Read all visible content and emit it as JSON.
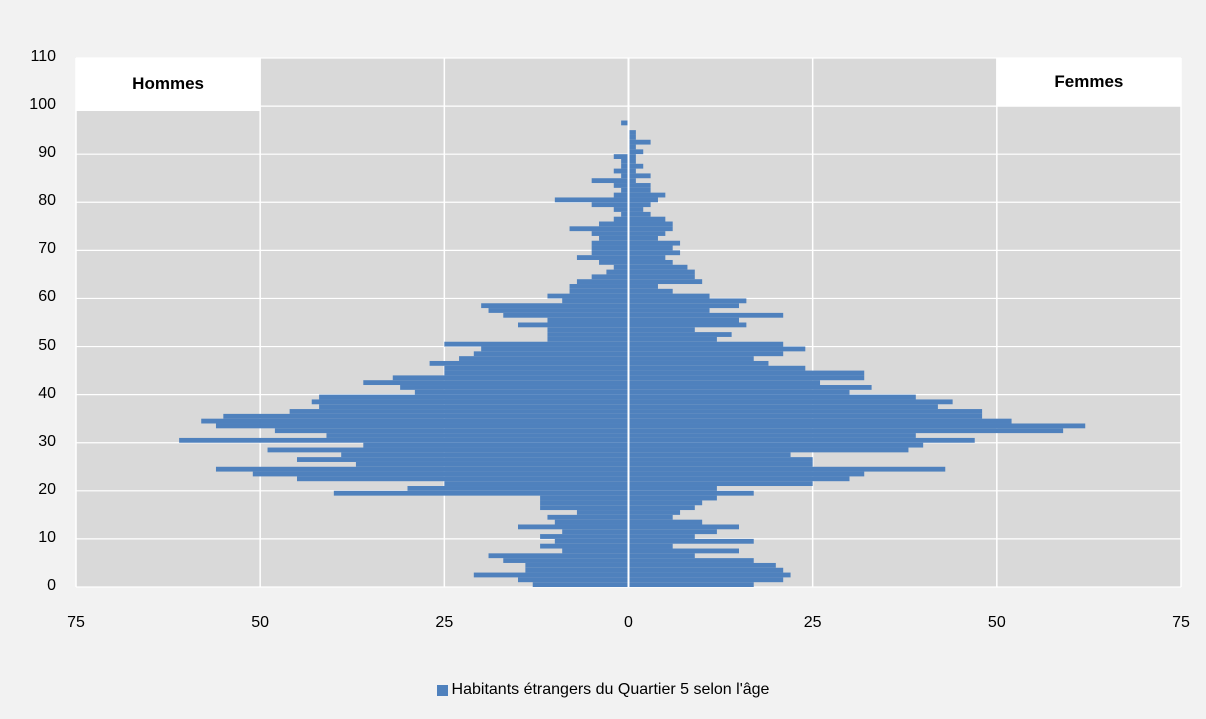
{
  "colors": {
    "bar": "#4f81bd",
    "plot_bg": "#d9d9d9",
    "frame_bg": "#f2f2f2",
    "grid": "#ffffff"
  },
  "labels": {
    "left_box": "Hommes",
    "right_box": "Femmes",
    "legend": "Habitants étrangers du Quartier 5 selon l'âge"
  },
  "chart_data": {
    "type": "bar",
    "orientation": "horizontal-population-pyramid",
    "title": "",
    "xlabel": "",
    "ylabel": "",
    "xlim": [
      -75,
      75
    ],
    "ylim": [
      0,
      110
    ],
    "x_ticks": [
      -75,
      -50,
      -25,
      0,
      25,
      50,
      75
    ],
    "x_tick_labels": [
      "75",
      "50",
      "25",
      "0",
      "25",
      "50",
      "75"
    ],
    "y_ticks": [
      0,
      10,
      20,
      30,
      40,
      50,
      60,
      70,
      80,
      90,
      100,
      110
    ],
    "grid": true,
    "legend_position": "bottom",
    "ages": [
      0,
      1,
      2,
      3,
      4,
      5,
      6,
      7,
      8,
      9,
      10,
      11,
      12,
      13,
      14,
      15,
      16,
      17,
      18,
      19,
      20,
      21,
      22,
      23,
      24,
      25,
      26,
      27,
      28,
      29,
      30,
      31,
      32,
      33,
      34,
      35,
      36,
      37,
      38,
      39,
      40,
      41,
      42,
      43,
      44,
      45,
      46,
      47,
      48,
      49,
      50,
      51,
      52,
      53,
      54,
      55,
      56,
      57,
      58,
      59,
      60,
      61,
      62,
      63,
      64,
      65,
      66,
      67,
      68,
      69,
      70,
      71,
      72,
      73,
      74,
      75,
      76,
      77,
      78,
      79,
      80,
      81,
      82,
      83,
      84,
      85,
      86,
      87,
      88,
      89,
      90,
      91,
      92,
      93,
      94,
      95,
      96,
      97
    ],
    "series": [
      {
        "name": "Hommes",
        "values": [
          13,
          15,
          21,
          14,
          14,
          17,
          19,
          9,
          12,
          10,
          12,
          9,
          15,
          10,
          11,
          7,
          12,
          12,
          12,
          40,
          30,
          25,
          45,
          51,
          56,
          37,
          45,
          39,
          49,
          36,
          61,
          41,
          48,
          56,
          58,
          55,
          46,
          42,
          43,
          42,
          29,
          31,
          36,
          32,
          25,
          25,
          27,
          23,
          21,
          20,
          25,
          11,
          11,
          11,
          15,
          11,
          17,
          19,
          20,
          9,
          11,
          8,
          8,
          7,
          5,
          3,
          2,
          4,
          7,
          5,
          5,
          5,
          4,
          5,
          8,
          4,
          2,
          1,
          2,
          5,
          10,
          2,
          1,
          2,
          5,
          1,
          2,
          1,
          1,
          2,
          0,
          0,
          0,
          0,
          0,
          0,
          1,
          0
        ]
      },
      {
        "name": "Femmes",
        "values": [
          17,
          21,
          22,
          21,
          20,
          17,
          9,
          15,
          6,
          17,
          9,
          12,
          15,
          10,
          6,
          7,
          9,
          10,
          12,
          17,
          12,
          25,
          30,
          32,
          43,
          25,
          25,
          22,
          38,
          40,
          47,
          39,
          59,
          62,
          52,
          48,
          48,
          42,
          44,
          39,
          30,
          33,
          26,
          32,
          32,
          24,
          19,
          17,
          21,
          24,
          21,
          12,
          14,
          9,
          16,
          15,
          21,
          11,
          15,
          16,
          11,
          6,
          4,
          10,
          9,
          9,
          8,
          6,
          5,
          7,
          6,
          7,
          4,
          5,
          6,
          6,
          5,
          3,
          2,
          3,
          4,
          5,
          3,
          3,
          1,
          3,
          1,
          2,
          1,
          1,
          2,
          1,
          3,
          1,
          1,
          0,
          0,
          0
        ]
      }
    ]
  }
}
